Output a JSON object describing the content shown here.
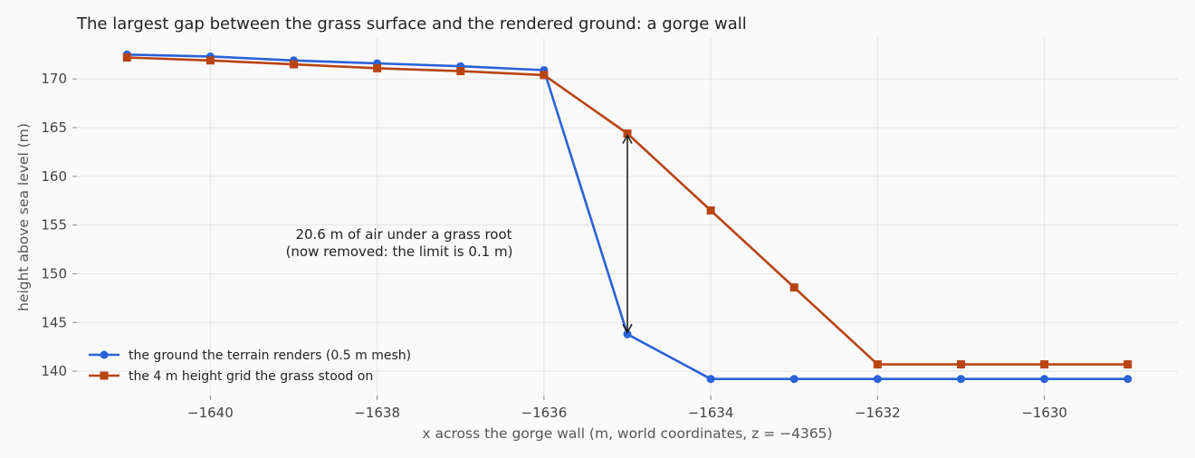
{
  "chart_data": {
    "type": "line",
    "title": "The largest gap between the grass surface and the rendered ground: a gorge wall",
    "xlabel": "x across the gorge wall (m, world coordinates, z = −4365)",
    "ylabel": "height above sea level (m)",
    "xlim": [
      -1641.6,
      -1628.4
    ],
    "ylim": [
      137.5,
      174.2
    ],
    "x_ticks": [
      -1640,
      -1638,
      -1636,
      -1634,
      -1632,
      -1630
    ],
    "x_tick_labels": [
      "−1640",
      "−1638",
      "−1636",
      "−1634",
      "−1632",
      "−1630"
    ],
    "y_ticks": [
      140,
      145,
      150,
      155,
      160,
      165,
      170
    ],
    "y_tick_labels": [
      "140",
      "145",
      "150",
      "155",
      "160",
      "165",
      "170"
    ],
    "grid": true,
    "legend_position": "lower-left",
    "series": [
      {
        "name": "the ground the terrain renders (0.5 m mesh)",
        "color": "#2a62d8",
        "marker": "circle",
        "x": [
          -1641,
          -1640,
          -1639,
          -1638,
          -1637,
          -1636,
          -1635,
          -1634,
          -1633,
          -1632,
          -1631,
          -1630,
          -1629
        ],
        "y": [
          172.5,
          172.3,
          171.9,
          171.6,
          171.3,
          170.9,
          143.8,
          139.2,
          139.2,
          139.2,
          139.2,
          139.2,
          139.2
        ]
      },
      {
        "name": "the 4 m height grid the grass stood on",
        "color": "#b84414",
        "marker": "square",
        "x": [
          -1641,
          -1640,
          -1639,
          -1638,
          -1637,
          -1636,
          -1635,
          -1634,
          -1633,
          -1632,
          -1631,
          -1630,
          -1629
        ],
        "y": [
          172.2,
          171.9,
          171.5,
          171.1,
          170.8,
          170.4,
          164.4,
          156.5,
          148.6,
          140.7,
          140.7,
          140.7,
          140.7
        ]
      }
    ],
    "annotation": {
      "lines": [
        "20.6 m of air under a grass root",
        "(now removed: the limit is 0.1 m)"
      ],
      "arrow_x": -1635,
      "arrow_y": [
        164.4,
        143.8
      ]
    }
  }
}
